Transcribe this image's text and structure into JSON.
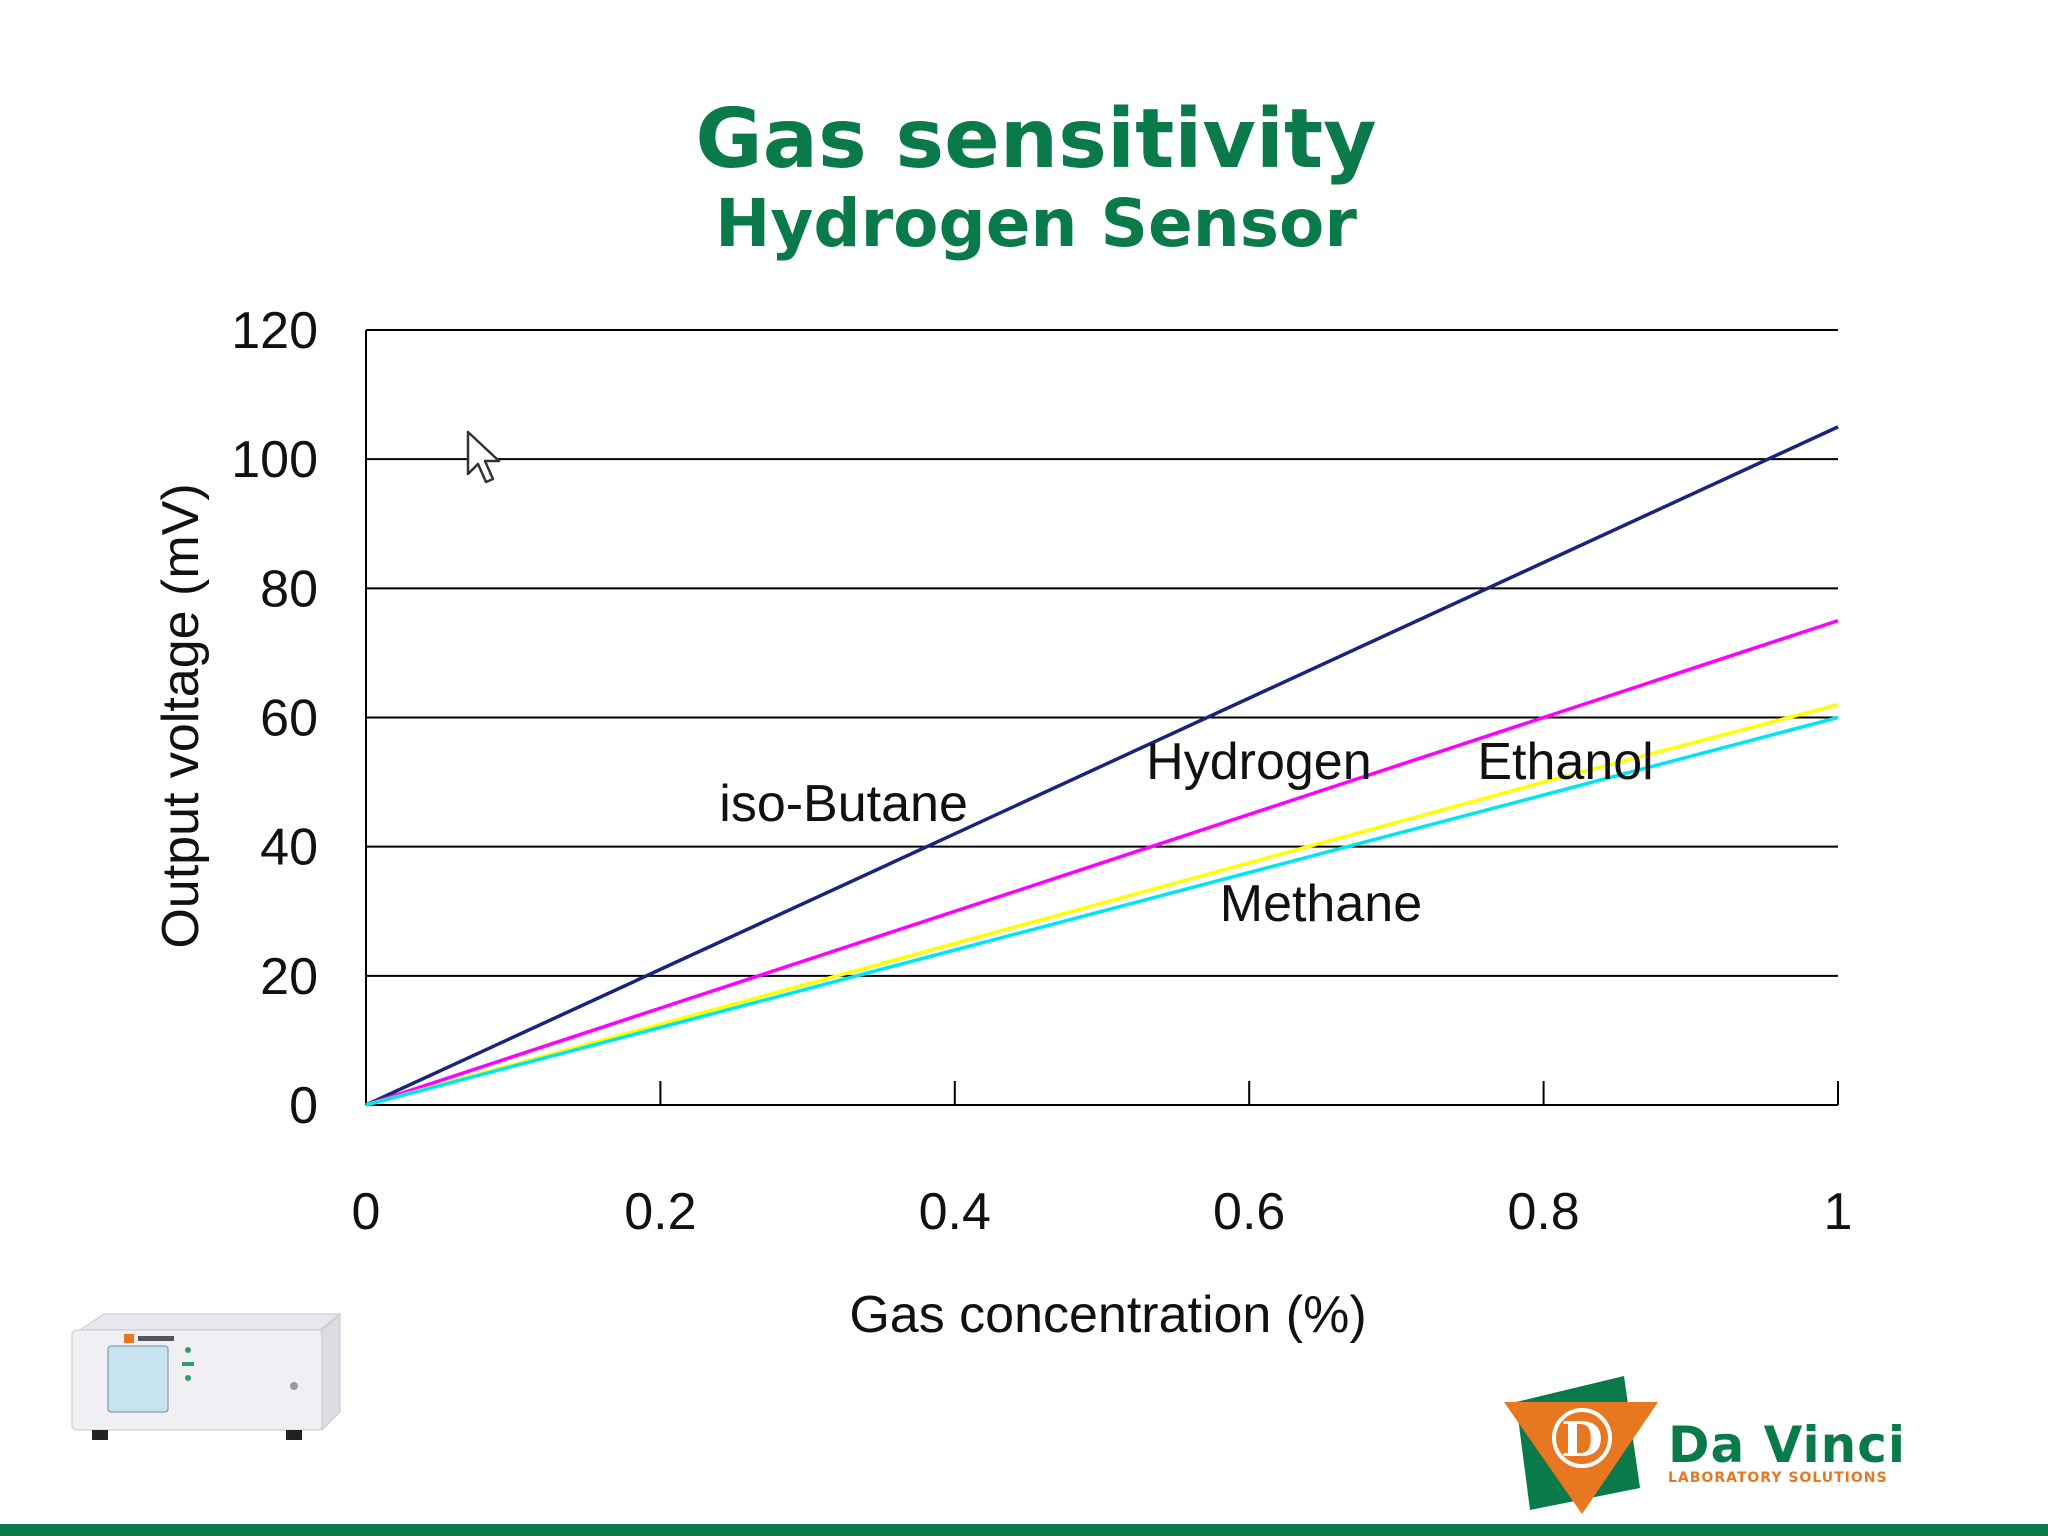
{
  "slide": {
    "title": "Gas sensitivity",
    "subtitle": "Hydrogen Sensor",
    "logo_name": "Da Vinci",
    "logo_tagline": "LABORATORY SOLUTIONS",
    "accent_color": "#0a7a4a",
    "logo_orange": "#e87722"
  },
  "chart_data": {
    "type": "line",
    "xlabel": "Gas concentration (%)",
    "ylabel": "Output voltage (mV)",
    "xlim": [
      0,
      1
    ],
    "ylim": [
      0,
      120
    ],
    "x_ticks": [
      "0",
      "0.2",
      "0.4",
      "0.6",
      "0.8",
      "1"
    ],
    "y_ticks": [
      "0",
      "20",
      "40",
      "60",
      "80",
      "100",
      "120"
    ],
    "grid": "horizontal",
    "series": [
      {
        "name": "iso-Butane",
        "color": "#1a237e",
        "x": [
          0,
          0.2,
          0.4,
          0.6,
          0.8,
          1.0
        ],
        "y": [
          0,
          21,
          42,
          63,
          84,
          105
        ]
      },
      {
        "name": "Hydrogen",
        "color": "#ff00ff",
        "x": [
          0,
          0.2,
          0.4,
          0.6,
          0.8,
          1.0
        ],
        "y": [
          0,
          15,
          30,
          45,
          60,
          75
        ]
      },
      {
        "name": "Ethanol",
        "color": "#ffff00",
        "x": [
          0,
          0.2,
          0.4,
          0.6,
          0.8,
          1.0
        ],
        "y": [
          0,
          12.5,
          25,
          37.5,
          50,
          62
        ]
      },
      {
        "name": "Methane",
        "color": "#00e5ee",
        "x": [
          0,
          0.2,
          0.4,
          0.6,
          0.8,
          1.0
        ],
        "y": [
          0,
          12,
          24,
          36,
          48,
          60
        ]
      }
    ],
    "annotations": [
      {
        "text": "iso-Butane",
        "x": 0.24,
        "y": 44
      },
      {
        "text": "Hydrogen",
        "x": 0.53,
        "y": 50.5
      },
      {
        "text": "Ethanol",
        "x": 0.755,
        "y": 50.5
      },
      {
        "text": "Methane",
        "x": 0.58,
        "y": 28.5
      }
    ]
  }
}
